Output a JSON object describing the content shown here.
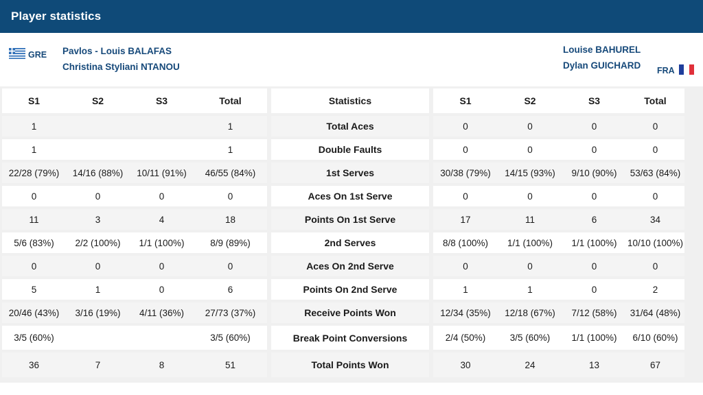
{
  "header": {
    "title": "Player statistics"
  },
  "teams": {
    "left": {
      "country": "GRE",
      "players": [
        "Pavlos - Louis BALAFAS",
        "Christina Styliani NTANOU"
      ]
    },
    "right": {
      "country": "FRA",
      "players": [
        "Louise BAHUREL",
        "Dylan GUICHARD"
      ]
    }
  },
  "colors": {
    "header_bg": "#0f4a78",
    "name_text": "#16497a",
    "gre_blue": "#2e6fb8",
    "fra_blue": "#1f3e9c",
    "fra_red": "#e0303a"
  },
  "table": {
    "left_headers": [
      "S1",
      "S2",
      "S3",
      "Total"
    ],
    "center_header": "Statistics",
    "right_headers": [
      "S1",
      "S2",
      "S3",
      "Total"
    ],
    "rows": [
      {
        "left": [
          "1",
          "",
          "",
          "1"
        ],
        "label": "Total Aces",
        "right": [
          "0",
          "0",
          "0",
          "0"
        ]
      },
      {
        "left": [
          "1",
          "",
          "",
          "1"
        ],
        "label": "Double Faults",
        "right": [
          "0",
          "0",
          "0",
          "0"
        ]
      },
      {
        "left": [
          "22/28 (79%)",
          "14/16 (88%)",
          "10/11 (91%)",
          "46/55 (84%)"
        ],
        "label": "1st Serves",
        "right": [
          "30/38 (79%)",
          "14/15 (93%)",
          "9/10 (90%)",
          "53/63 (84%)"
        ]
      },
      {
        "left": [
          "0",
          "0",
          "0",
          "0"
        ],
        "label": "Aces On 1st Serve",
        "right": [
          "0",
          "0",
          "0",
          "0"
        ]
      },
      {
        "left": [
          "11",
          "3",
          "4",
          "18"
        ],
        "label": "Points On 1st Serve",
        "right": [
          "17",
          "11",
          "6",
          "34"
        ]
      },
      {
        "left": [
          "5/6 (83%)",
          "2/2 (100%)",
          "1/1 (100%)",
          "8/9 (89%)"
        ],
        "label": "2nd Serves",
        "right": [
          "8/8 (100%)",
          "1/1 (100%)",
          "1/1 (100%)",
          "10/10 (100%)"
        ]
      },
      {
        "left": [
          "0",
          "0",
          "0",
          "0"
        ],
        "label": "Aces On 2nd Serve",
        "right": [
          "0",
          "0",
          "0",
          "0"
        ]
      },
      {
        "left": [
          "5",
          "1",
          "0",
          "6"
        ],
        "label": "Points On 2nd Serve",
        "right": [
          "1",
          "1",
          "0",
          "2"
        ]
      },
      {
        "left": [
          "20/46 (43%)",
          "3/16 (19%)",
          "4/11 (36%)",
          "27/73 (37%)"
        ],
        "label": "Receive Points Won",
        "right": [
          "12/34 (35%)",
          "12/18 (67%)",
          "7/12 (58%)",
          "31/64 (48%)"
        ]
      },
      {
        "left": [
          "3/5 (60%)",
          "",
          "",
          "3/5 (60%)"
        ],
        "label": "Break Point Conversions",
        "right": [
          "2/4 (50%)",
          "3/5 (60%)",
          "1/1 (100%)",
          "6/10 (60%)"
        ]
      },
      {
        "left": [
          "36",
          "7",
          "8",
          "51"
        ],
        "label": "Total Points Won",
        "right": [
          "30",
          "24",
          "13",
          "67"
        ]
      }
    ]
  }
}
